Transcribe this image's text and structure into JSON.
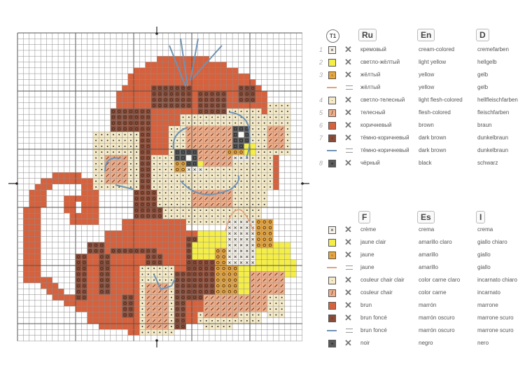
{
  "symbols": {
    "cream": {
      "bg": "#f7f3ea",
      "mark": "x"
    },
    "light_yellow": {
      "bg": "#f5ee48"
    },
    "yellow": {
      "bg": "#e9a63c",
      "mark": "o"
    },
    "yellow_line": {
      "color": "#e7a07a"
    },
    "light_flesh": {
      "bg": "#f6ebc8",
      "mark": "dot"
    },
    "flesh": {
      "bg": "#f0ad88",
      "mark": "slash"
    },
    "brown": {
      "bg": "#d6613c"
    },
    "dark_brown": {
      "bg": "#8b4b37",
      "mark": "o"
    },
    "dark_brown_line": {
      "color": "#6e93b5"
    },
    "black": {
      "bg": "#5a5a5a",
      "mark": "square"
    }
  },
  "legend_top": {
    "thread_header": "T1",
    "headers": [
      "Ru",
      "En",
      "D"
    ],
    "rows": [
      {
        "num": "1",
        "symbol": "cream",
        "stitch": "cross",
        "cols": [
          "кремовый",
          "cream-colored",
          "cremefarben"
        ]
      },
      {
        "num": "2",
        "symbol": "light_yellow",
        "stitch": "cross",
        "cols": [
          "светло-жёлтый",
          "light yellow",
          "hellgelb"
        ]
      },
      {
        "num": "3",
        "symbol": "yellow",
        "stitch": "cross",
        "cols": [
          "жёлтый",
          "yellow",
          "gelb"
        ]
      },
      {
        "num": "",
        "symbol": "yellow_line",
        "stitch": "backstitch",
        "cols": [
          "жёлтый",
          "yellow",
          "gelb"
        ]
      },
      {
        "num": "4",
        "symbol": "light_flesh",
        "stitch": "cross",
        "cols": [
          "светло-телесный",
          "light flesh-colored",
          "hellfleischfarben"
        ]
      },
      {
        "num": "5",
        "symbol": "flesh",
        "stitch": "cross",
        "cols": [
          "телесный",
          "flesh-colored",
          "fleischfarben"
        ]
      },
      {
        "num": "6",
        "symbol": "brown",
        "stitch": "cross",
        "cols": [
          "коричневый",
          "brown",
          "braun"
        ]
      },
      {
        "num": "7",
        "symbol": "dark_brown",
        "stitch": "cross",
        "cols": [
          "тёмно-коричневый",
          "dark brown",
          "dunkelbraun"
        ]
      },
      {
        "num": "",
        "symbol": "dark_brown_line",
        "stitch": "backstitch",
        "cols": [
          "тёмно-коричневый",
          "dark brown",
          "dunkelbraun"
        ]
      },
      {
        "num": "8",
        "symbol": "black",
        "stitch": "cross",
        "cols": [
          "чёрный",
          "black",
          "schwarz"
        ]
      }
    ]
  },
  "legend_bottom": {
    "headers": [
      "F",
      "Es",
      "I"
    ],
    "rows": [
      {
        "symbol": "cream",
        "stitch": "cross",
        "cols": [
          "crème",
          "crema",
          "crema"
        ]
      },
      {
        "symbol": "light_yellow",
        "stitch": "cross",
        "cols": [
          "jaune clair",
          "amarillo claro",
          "giallo chiaro"
        ]
      },
      {
        "symbol": "yellow",
        "stitch": "cross",
        "cols": [
          "jaune",
          "amarillo",
          "giallo"
        ]
      },
      {
        "symbol": "yellow_line",
        "stitch": "backstitch",
        "cols": [
          "jaune",
          "amarillo",
          "giallo"
        ]
      },
      {
        "symbol": "light_flesh",
        "stitch": "cross",
        "cols": [
          "couleur chair clair",
          "color carne claro",
          "incarnato chiaro"
        ]
      },
      {
        "symbol": "flesh",
        "stitch": "cross",
        "cols": [
          "couleur chair",
          "color carne",
          "incarnato"
        ]
      },
      {
        "symbol": "brown",
        "stitch": "cross",
        "cols": [
          "brun",
          "marrón",
          "marrone"
        ]
      },
      {
        "symbol": "dark_brown",
        "stitch": "cross",
        "cols": [
          "brun foncé",
          "marrón oscuro",
          "marrone scuro"
        ]
      },
      {
        "symbol": "dark_brown_line",
        "stitch": "backstitch",
        "cols": [
          "brun foncé",
          "marrón oscuro",
          "marrone scuro"
        ]
      },
      {
        "symbol": "black",
        "stitch": "cross",
        "cols": [
          "noir",
          "negro",
          "nero"
        ]
      }
    ]
  }
}
